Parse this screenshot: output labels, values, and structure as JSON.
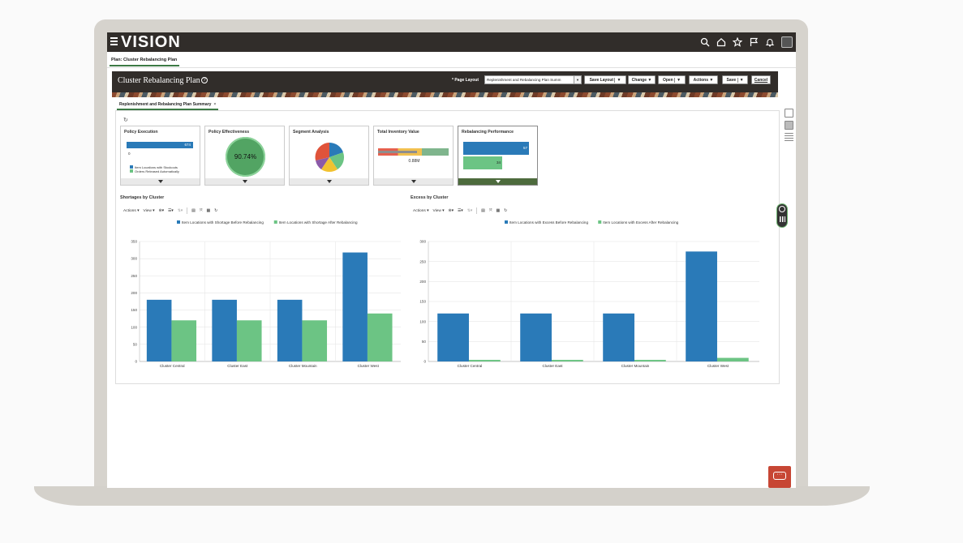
{
  "app": {
    "brand": "VISION"
  },
  "page_tab": "Plan: Cluster Rebalancing Plan",
  "header": {
    "title": "Cluster Rebalancing Plan",
    "page_layout_label": "* Page Layout",
    "page_layout_value": "Replenishment and Rebalancing Plan Summ",
    "buttons": {
      "save_layout": "Save Layout",
      "change": "Change",
      "open": "Open",
      "actions": "Actions",
      "save": "Save",
      "cancel": "Cancel"
    }
  },
  "subtab": {
    "label": "Replenishment and Rebalancing Plan Summary",
    "close": "×"
  },
  "tiles": {
    "policy_execution": {
      "title": "Policy Execution",
      "bar_value": "674",
      "axis_min": "0",
      "legend": [
        "Item Locations with Stockouts",
        "Orders Released Automatically"
      ]
    },
    "policy_effectiveness": {
      "title": "Policy Effectiveness",
      "value": "90.74%"
    },
    "segment_analysis": {
      "title": "Segment Analysis"
    },
    "total_inventory": {
      "title": "Total Inventory Value",
      "value": "0.88M"
    },
    "rebalancing_performance": {
      "title": "Rebalancing Performance",
      "value1": "57",
      "value2": "34"
    }
  },
  "toolbar": {
    "actions": "Actions",
    "view": "View"
  },
  "colors": {
    "blue": "#2a7ab8",
    "green": "#6cc484",
    "dark_bar": "#312d2a"
  },
  "chart_data": [
    {
      "type": "bar",
      "title": "Shortages by Cluster",
      "categories": [
        "Cluster Central",
        "Cluster East",
        "Cluster Mountain",
        "Cluster West"
      ],
      "series": [
        {
          "name": "Item Locations with Shortage Before Rebalancing",
          "values": [
            180,
            180,
            180,
            318
          ]
        },
        {
          "name": "Item Locations with Shortage After Rebalancing",
          "values": [
            120,
            120,
            120,
            140
          ]
        }
      ],
      "ylim": [
        0,
        350
      ],
      "yticks": [
        0,
        50,
        100,
        150,
        200,
        250,
        300,
        350
      ],
      "grid": true,
      "legend": "top"
    },
    {
      "type": "bar",
      "title": "Excess by Cluster",
      "categories": [
        "Cluster Central",
        "Cluster East",
        "Cluster Mountain",
        "Cluster West"
      ],
      "series": [
        {
          "name": "Item Locations with Excess Before Rebalancing",
          "values": [
            120,
            120,
            120,
            275
          ]
        },
        {
          "name": "Item Locations with Excess After Rebalancing",
          "values": [
            4,
            4,
            4,
            9
          ]
        }
      ],
      "ylim": [
        0,
        300
      ],
      "yticks": [
        0,
        50,
        100,
        150,
        200,
        250,
        300
      ],
      "grid": true,
      "legend": "top"
    }
  ]
}
